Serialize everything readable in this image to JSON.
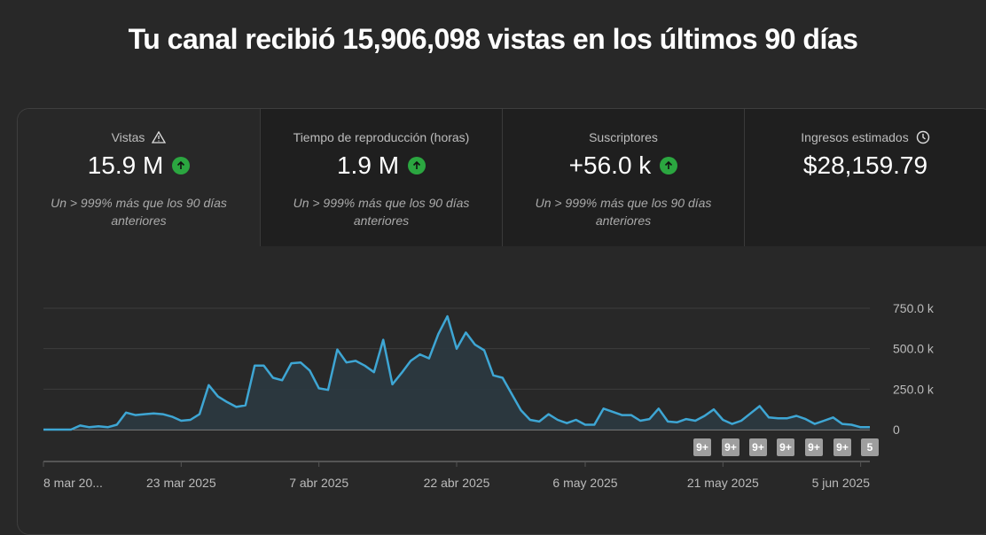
{
  "header": {
    "title": "Tu canal recibió 15,906,098 vistas en los últimos 90 días"
  },
  "tabs": [
    {
      "label": "Vistas",
      "icon": "warning-icon",
      "value": "15.9 M",
      "trend": "up",
      "note": "Un > 999% más que los 90 días anteriores"
    },
    {
      "label": "Tiempo de reproducción (horas)",
      "value": "1.9 M",
      "trend": "up",
      "note": "Un > 999% más que los 90 días anteriores"
    },
    {
      "label": "Suscriptores",
      "value": "+56.0 k",
      "trend": "up",
      "note": "Un > 999% más que los 90 días anteriores"
    },
    {
      "label": "Ingresos estimados",
      "icon": "clock-icon",
      "value": "$28,159.79"
    }
  ],
  "colors": {
    "line": "#3ea6d4",
    "up": "#2ba640",
    "background": "#282828"
  },
  "chart_data": {
    "type": "area",
    "ylim": [
      0,
      750000
    ],
    "y_ticks": [
      {
        "v": 750000,
        "label": "750.0 k"
      },
      {
        "v": 500000,
        "label": "500.0 k"
      },
      {
        "v": 250000,
        "label": "250.0 k"
      },
      {
        "v": 0,
        "label": "0"
      }
    ],
    "x_ticks": [
      {
        "date": "2025-03-08",
        "label": "8 mar 20..."
      },
      {
        "date": "2025-03-23",
        "label": "23 mar 2025"
      },
      {
        "date": "2025-04-07",
        "label": "7 abr 2025"
      },
      {
        "date": "2025-04-22",
        "label": "22 abr 2025"
      },
      {
        "date": "2025-05-06",
        "label": "6 may 2025"
      },
      {
        "date": "2025-05-21",
        "label": "21 may 2025"
      },
      {
        "date": "2025-06-05",
        "label": "5 jun 2025"
      }
    ],
    "grid": true,
    "x": [
      "2025-03-08",
      "2025-03-09",
      "2025-03-10",
      "2025-03-11",
      "2025-03-12",
      "2025-03-13",
      "2025-03-14",
      "2025-03-15",
      "2025-03-16",
      "2025-03-17",
      "2025-03-18",
      "2025-03-19",
      "2025-03-20",
      "2025-03-21",
      "2025-03-22",
      "2025-03-23",
      "2025-03-24",
      "2025-03-25",
      "2025-03-26",
      "2025-03-27",
      "2025-03-28",
      "2025-03-29",
      "2025-03-30",
      "2025-03-31",
      "2025-04-01",
      "2025-04-02",
      "2025-04-03",
      "2025-04-04",
      "2025-04-05",
      "2025-04-06",
      "2025-04-07",
      "2025-04-08",
      "2025-04-09",
      "2025-04-10",
      "2025-04-11",
      "2025-04-12",
      "2025-04-13",
      "2025-04-14",
      "2025-04-15",
      "2025-04-16",
      "2025-04-17",
      "2025-04-18",
      "2025-04-19",
      "2025-04-20",
      "2025-04-21",
      "2025-04-22",
      "2025-04-23",
      "2025-04-24",
      "2025-04-25",
      "2025-04-26",
      "2025-04-27",
      "2025-04-28",
      "2025-04-29",
      "2025-04-30",
      "2025-05-01",
      "2025-05-02",
      "2025-05-03",
      "2025-05-04",
      "2025-05-05",
      "2025-05-06",
      "2025-05-07",
      "2025-05-08",
      "2025-05-09",
      "2025-05-10",
      "2025-05-11",
      "2025-05-12",
      "2025-05-13",
      "2025-05-14",
      "2025-05-15",
      "2025-05-16",
      "2025-05-17",
      "2025-05-18",
      "2025-05-19",
      "2025-05-20",
      "2025-05-21",
      "2025-05-22",
      "2025-05-23",
      "2025-05-24",
      "2025-05-25",
      "2025-05-26",
      "2025-05-27",
      "2025-05-28",
      "2025-05-29",
      "2025-05-30",
      "2025-05-31",
      "2025-06-01",
      "2025-06-02",
      "2025-06-03",
      "2025-06-04",
      "2025-06-05",
      "2025-06-06"
    ],
    "values": [
      0,
      0,
      0,
      0,
      25000,
      15000,
      20000,
      15000,
      30000,
      105000,
      90000,
      95000,
      100000,
      95000,
      80000,
      55000,
      60000,
      95000,
      275000,
      205000,
      170000,
      140000,
      150000,
      395000,
      395000,
      320000,
      305000,
      410000,
      415000,
      365000,
      255000,
      245000,
      495000,
      415000,
      425000,
      395000,
      355000,
      555000,
      280000,
      350000,
      425000,
      465000,
      440000,
      590000,
      700000,
      500000,
      600000,
      525000,
      490000,
      335000,
      320000,
      220000,
      120000,
      60000,
      50000,
      95000,
      60000,
      40000,
      60000,
      30000,
      30000,
      130000,
      110000,
      90000,
      90000,
      55000,
      65000,
      130000,
      50000,
      45000,
      65000,
      55000,
      85000,
      125000,
      60000,
      35000,
      55000,
      100000,
      145000,
      75000,
      70000,
      70000,
      85000,
      65000,
      35000,
      55000,
      75000,
      35000,
      30000,
      15000,
      15000
    ],
    "annotations": [
      {
        "date": "2025-05-23",
        "label": "9+"
      },
      {
        "date": "2025-05-26",
        "label": "9+"
      },
      {
        "date": "2025-05-29",
        "label": "9+"
      },
      {
        "date": "2025-06-01",
        "label": "9+"
      },
      {
        "date": "2025-06-04",
        "label": "9+"
      },
      {
        "date": "2025-06-07",
        "label": "9+"
      },
      {
        "date": "2025-06-10",
        "label": "5"
      }
    ]
  }
}
